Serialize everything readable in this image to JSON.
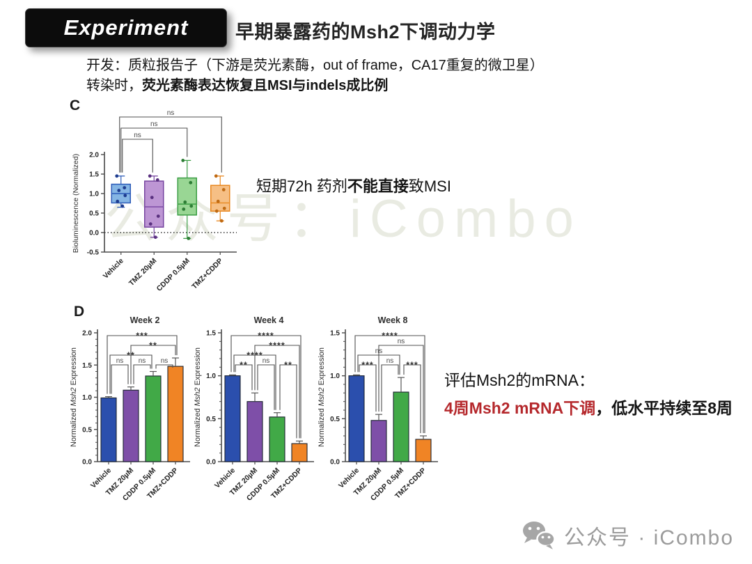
{
  "header": {
    "badge": "Experiment",
    "title": "早期暴露药的Msh2下调动力学"
  },
  "intro": {
    "line1": "开发：质粒报告子（下游是荧光素酶，out of frame，CA17重复的微卫星）",
    "line2_prefix": "转染时，",
    "line2_bold": "荧光素酶表达恢复且MSI与indels成比例"
  },
  "panels": {
    "c": {
      "label": "C",
      "note_prefix": "短期72h 药剂",
      "note_bold": "不能直接",
      "note_suffix": "致MSI"
    },
    "d": {
      "label": "D",
      "note_line1": "评估Msh2的mRNA：",
      "note_red": "4周Msh2 mRNA下调",
      "note_black": "，低水平持续至8周"
    }
  },
  "watermarks": {
    "center": "公众号：iCombo",
    "footer": "公众号 · iCombo",
    "wechat_icon": "wechat-icon"
  },
  "colors": {
    "accent_red": "#b5282c",
    "axis": "#4a4a4a",
    "bracket": "#4f4f4f",
    "bar_fills": [
      "#2b4fad",
      "#7e4fa8",
      "#41a947",
      "#f08425"
    ],
    "bar_edge": "#1d2430",
    "box_fills": [
      "#85b5e4",
      "#bd96d4",
      "#99d694",
      "#f6bf85"
    ],
    "box_edges": [
      "#2d5bb8",
      "#7644a0",
      "#3c9e45",
      "#e8871f"
    ],
    "point_colors": [
      "#1e3c8f",
      "#59307f",
      "#2d7d35",
      "#c06a12"
    ]
  },
  "chart_data": [
    {
      "type": "box",
      "panel": "C",
      "title": "",
      "ylabel": "Bioluminescence (Normalized)",
      "ylim": [
        -0.5,
        2.0
      ],
      "ytick": 0.5,
      "zero_line": true,
      "categories": [
        "Vehicle",
        "TMZ 20µM",
        "CDDP 0.5µM",
        "TMZ+CDDP"
      ],
      "boxes": [
        {
          "whislo": 0.65,
          "q1": 0.76,
          "med": 1.0,
          "q3": 1.24,
          "whishi": 1.45,
          "points": [
            1.45,
            1.15,
            1.08,
            0.95,
            0.8,
            0.68
          ]
        },
        {
          "whislo": -0.12,
          "q1": 0.14,
          "med": 0.66,
          "q3": 1.32,
          "whishi": 1.45,
          "points": [
            1.45,
            1.35,
            0.9,
            0.42,
            0.22,
            -0.12
          ]
        },
        {
          "whislo": -0.15,
          "q1": 0.45,
          "med": 0.73,
          "q3": 1.4,
          "whishi": 1.85,
          "points": [
            1.85,
            1.28,
            0.78,
            0.68,
            0.6,
            -0.15
          ]
        },
        {
          "whislo": 0.3,
          "q1": 0.55,
          "med": 0.76,
          "q3": 1.21,
          "whishi": 1.45,
          "points": [
            1.45,
            1.1,
            0.8,
            0.62,
            0.55,
            0.3
          ]
        }
      ],
      "brackets": [
        {
          "from": 0,
          "to": 3,
          "label": "ns",
          "row": 0
        },
        {
          "from": 0,
          "to": 2,
          "label": "ns",
          "row": 1
        },
        {
          "from": 0,
          "to": 1,
          "label": "ns",
          "row": 2
        }
      ]
    },
    {
      "type": "bar",
      "panel": "D",
      "title": "Week 2",
      "ylabel_parts": [
        "Normalized ",
        "Msh2",
        " Expression"
      ],
      "ylim": [
        0,
        2.0
      ],
      "ytick": 0.5,
      "categories": [
        "Vehicle",
        "TMZ 20µM",
        "CDDP 0.5µM",
        "TMZ+CDDP"
      ],
      "values": [
        0.99,
        1.11,
        1.33,
        1.48
      ],
      "errors": [
        0.02,
        0.05,
        0.07,
        0.13
      ],
      "brackets": [
        {
          "from": 0,
          "to": 3,
          "label": "***",
          "row": 0
        },
        {
          "from": 1,
          "to": 3,
          "label": "**",
          "row": 1
        },
        {
          "from": 0,
          "to": 2,
          "label": "**",
          "row": 2
        },
        {
          "from": 0,
          "to": 1,
          "label": "ns",
          "row": 3
        },
        {
          "from": 1,
          "to": 2,
          "label": "ns",
          "row": 3
        },
        {
          "from": 2,
          "to": 3,
          "label": "ns",
          "row": 3
        }
      ]
    },
    {
      "type": "bar",
      "panel": "D",
      "title": "Week 4",
      "ylabel_parts": [
        "Normalized ",
        "Msh2",
        " Expression"
      ],
      "ylim": [
        0,
        1.5
      ],
      "ytick": 0.5,
      "categories": [
        "Vehicle",
        "TMZ 20µM",
        "CDDP 0.5µM",
        "TMZ+CDDP"
      ],
      "values": [
        1.0,
        0.7,
        0.52,
        0.21
      ],
      "errors": [
        0.01,
        0.1,
        0.05,
        0.03
      ],
      "brackets": [
        {
          "from": 0,
          "to": 3,
          "label": "****",
          "row": 0
        },
        {
          "from": 1,
          "to": 3,
          "label": "****",
          "row": 1
        },
        {
          "from": 0,
          "to": 2,
          "label": "****",
          "row": 2
        },
        {
          "from": 0,
          "to": 1,
          "label": "**",
          "row": 3
        },
        {
          "from": 1,
          "to": 2,
          "label": "ns",
          "row": 3
        },
        {
          "from": 2,
          "to": 3,
          "label": "**",
          "row": 3
        }
      ]
    },
    {
      "type": "bar",
      "panel": "D",
      "title": "Week 8",
      "ylabel_parts": [
        "Normalized ",
        "Msh2",
        " Expression"
      ],
      "ylim": [
        0,
        1.5
      ],
      "ytick": 0.5,
      "categories": [
        "Vehicle",
        "TMZ 20µM",
        "CDDP 0.5µM",
        "TMZ+CDDP"
      ],
      "values": [
        1.0,
        0.48,
        0.81,
        0.26
      ],
      "errors": [
        0.01,
        0.07,
        0.17,
        0.04
      ],
      "brackets": [
        {
          "from": 0,
          "to": 3,
          "label": "****",
          "row": 0
        },
        {
          "from": 1,
          "to": 3,
          "label": "ns",
          "row": 1
        },
        {
          "from": 0,
          "to": 2,
          "label": "ns",
          "row": 2
        },
        {
          "from": 0,
          "to": 1,
          "label": "***",
          "row": 3
        },
        {
          "from": 1,
          "to": 2,
          "label": "ns",
          "row": 3
        },
        {
          "from": 2,
          "to": 3,
          "label": "***",
          "row": 3
        }
      ]
    }
  ]
}
